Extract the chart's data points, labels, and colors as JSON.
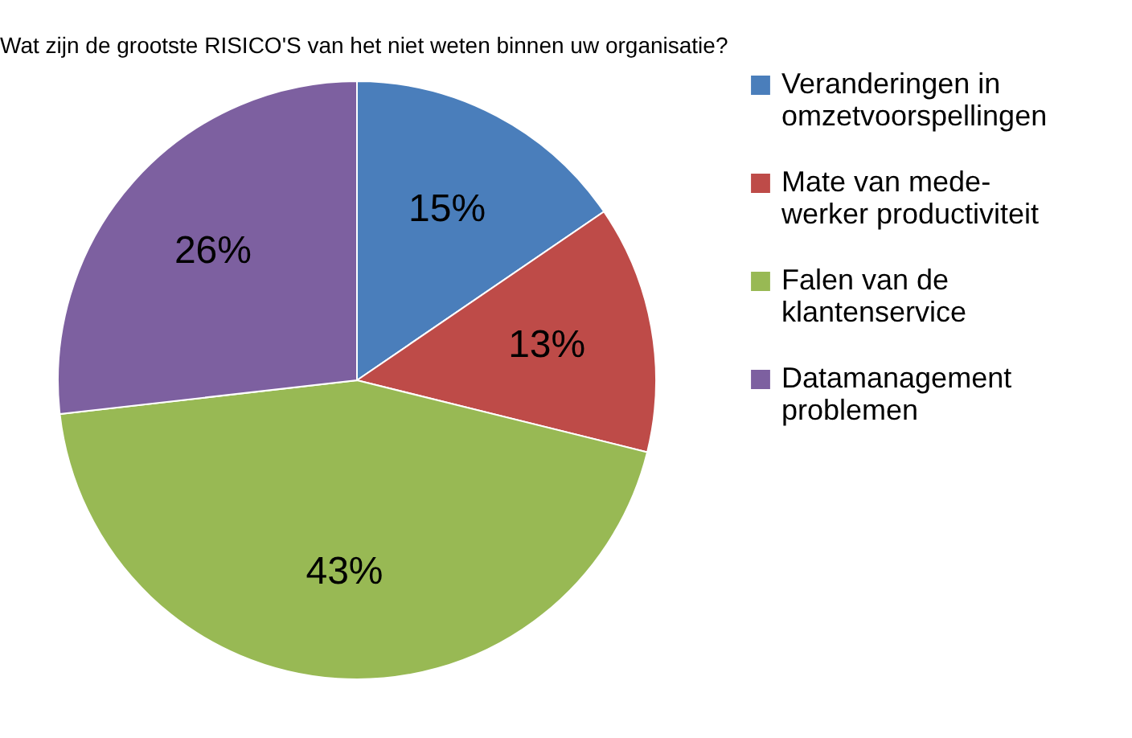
{
  "chart_data": {
    "type": "pie",
    "title": "Wat zijn de grootste RISICO'S van het niet weten binnen uw organisatie?",
    "categories": [
      "Veranderingen in\nomzetvoorspellingen",
      "Mate van mede-\nwerker productiviteit",
      "Falen van de\nklantenservice",
      "Datamanagement\nproblemen"
    ],
    "values": [
      15,
      13,
      43,
      26
    ],
    "colors": [
      "#4a7ebb",
      "#be4b48",
      "#98b954",
      "#7d60a0"
    ],
    "value_labels": [
      "15%",
      "13%",
      "43%",
      "26%"
    ],
    "legend": "right"
  }
}
